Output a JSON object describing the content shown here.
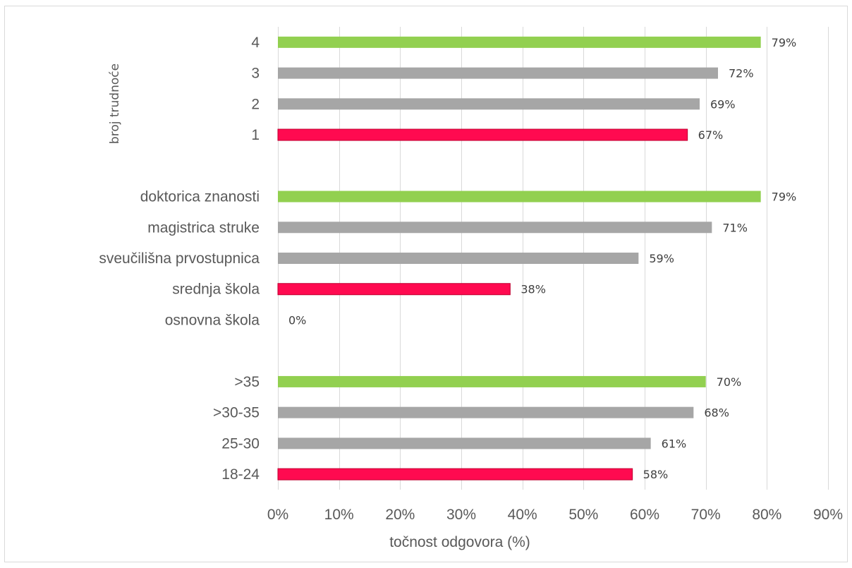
{
  "chart_data": {
    "type": "bar",
    "orientation": "horizontal",
    "xlabel": "točnost odgovora (%)",
    "ylabel": "broj trudnoće",
    "xlim": [
      0,
      90
    ],
    "xticks": [
      "0%",
      "10%",
      "20%",
      "30%",
      "40%",
      "50%",
      "60%",
      "70%",
      "80%",
      "90%"
    ],
    "grid": true,
    "colors": {
      "high": "#92d050",
      "mid": "#a6a6a6",
      "low": "#ff0a50"
    },
    "rows": [
      {
        "label": "4",
        "value": 79,
        "display": "79%",
        "color": "high"
      },
      {
        "label": "3",
        "value": 72,
        "display": "72%",
        "color": "mid"
      },
      {
        "label": "2",
        "value": 69,
        "display": "69%",
        "color": "mid"
      },
      {
        "label": "1",
        "value": 67,
        "display": "67%",
        "color": "low"
      },
      {
        "label": "",
        "value": null,
        "display": "",
        "color": ""
      },
      {
        "label": "doktorica znanosti",
        "value": 79,
        "display": "79%",
        "color": "high"
      },
      {
        "label": "magistrica struke",
        "value": 71,
        "display": "71%",
        "color": "mid"
      },
      {
        "label": "sveučilišna prvostupnica",
        "value": 59,
        "display": "59%",
        "color": "mid"
      },
      {
        "label": "srednja škola",
        "value": 38,
        "display": "38%",
        "color": "low"
      },
      {
        "label": "osnovna škola",
        "value": 0,
        "display": "0%",
        "color": "low"
      },
      {
        "label": "",
        "value": null,
        "display": "",
        "color": ""
      },
      {
        "label": ">35",
        "value": 70,
        "display": "70%",
        "color": "high"
      },
      {
        "label": ">30-35",
        "value": 68,
        "display": "68%",
        "color": "mid"
      },
      {
        "label": "25-30",
        "value": 61,
        "display": "61%",
        "color": "mid"
      },
      {
        "label": "18-24",
        "value": 58,
        "display": "58%",
        "color": "low"
      }
    ]
  }
}
